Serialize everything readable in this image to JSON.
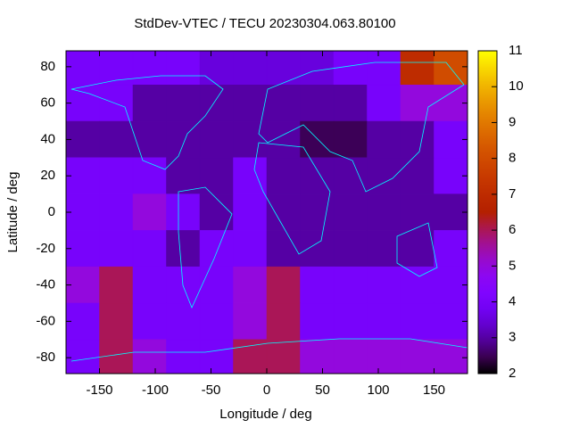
{
  "chart_data": {
    "type": "heatmap",
    "title": "StdDev-VTEC / TECU 20230304.063.80100",
    "xlabel": "Longitude / deg",
    "ylabel": "Latitude / deg",
    "xlim": [
      -180,
      180
    ],
    "ylim": [
      -88.75,
      88.75
    ],
    "xticks": [
      -150,
      -100,
      -50,
      0,
      50,
      100,
      150
    ],
    "yticks": [
      -80,
      -60,
      -40,
      -20,
      0,
      20,
      40,
      60,
      80
    ],
    "xbins": [
      -180,
      -150,
      -120,
      -90,
      -60,
      -30,
      0,
      30,
      60,
      90,
      120,
      150,
      180
    ],
    "ybins": [
      88.75,
      70,
      50,
      30,
      10,
      -10,
      -30,
      -50,
      -70,
      -88.75
    ],
    "z": [
      [
        4,
        4,
        4,
        4,
        3.5,
        3.5,
        3.5,
        3.5,
        4,
        4,
        7,
        8
      ],
      [
        4,
        4,
        3,
        3,
        3,
        3,
        3,
        3,
        3,
        4,
        5,
        5
      ],
      [
        3,
        3,
        3,
        3,
        3,
        3,
        3,
        2.5,
        2.5,
        3,
        3,
        4
      ],
      [
        4,
        4,
        4,
        3,
        3,
        4,
        3,
        3,
        3,
        3,
        3,
        4
      ],
      [
        4,
        4,
        5,
        4,
        3,
        4,
        3,
        3,
        3,
        3,
        3,
        3
      ],
      [
        4,
        4,
        4,
        3,
        4,
        4,
        3,
        3,
        3,
        3,
        3,
        4
      ],
      [
        5,
        6,
        4,
        4,
        4,
        5,
        6,
        4,
        4,
        4,
        4,
        4
      ],
      [
        4,
        6,
        4,
        4,
        4,
        5,
        6,
        4,
        4,
        4,
        4,
        4
      ],
      [
        4,
        6,
        5,
        4,
        4,
        6,
        6,
        5,
        5,
        5,
        5,
        5
      ]
    ],
    "palette": "gnuplot",
    "cblim": [
      2,
      11
    ],
    "cbticks": [
      2,
      3,
      4,
      5,
      6,
      7,
      8,
      9,
      10,
      11
    ]
  }
}
